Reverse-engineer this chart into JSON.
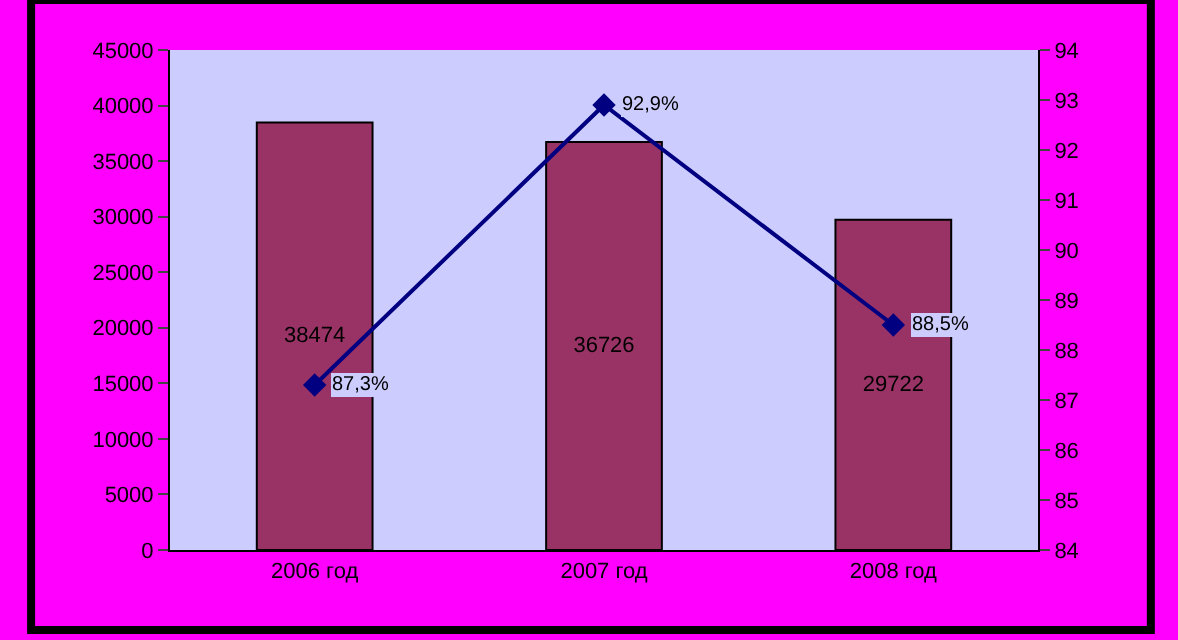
{
  "chart_data": {
    "type": "bar",
    "categories": [
      "2006 год",
      "2007 год",
      "2008 год"
    ],
    "series": [
      {
        "color": "#993366",
        "values": [
          38474,
          36726,
          29722
        ],
        "data_labels": true
      },
      {
        "type": "line",
        "axis": "y2",
        "color": "#000080",
        "values": [
          87.3,
          92.9,
          88.5
        ],
        "value_labels": [
          "87,3%",
          "92,9%",
          "88,5%"
        ],
        "marker": "diamond",
        "line_style": "solid"
      }
    ],
    "ylim": [
      0,
      45000
    ],
    "yticks": [
      0,
      5000,
      10000,
      15000,
      20000,
      25000,
      30000,
      35000,
      40000,
      45000
    ],
    "y2lim": [
      84,
      94
    ],
    "y2ticks": [
      84,
      85,
      86,
      87,
      88,
      89,
      90,
      91,
      92,
      93,
      94
    ],
    "grid": false,
    "legend": false
  }
}
